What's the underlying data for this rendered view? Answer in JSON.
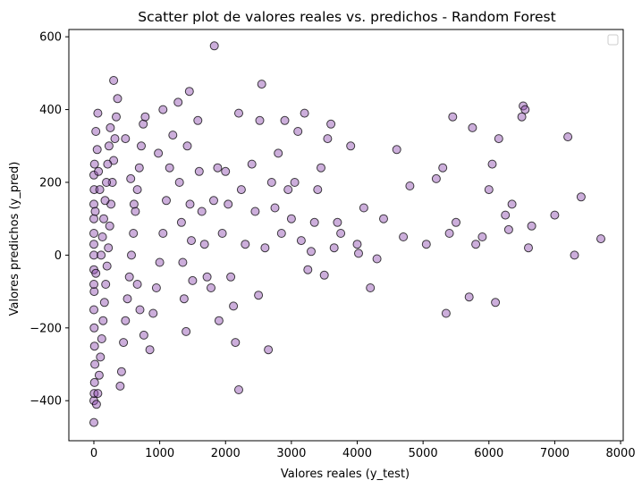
{
  "chart_data": {
    "type": "scatter",
    "title": "Scatter plot de valores reales vs. predichos - Random Forest",
    "xlabel": "Valores reales (y_test)",
    "ylabel": "Valores predichos (y_pred)",
    "xlim": [
      -380,
      8040
    ],
    "ylim": [
      -510,
      620
    ],
    "xticks": [
      0,
      1000,
      2000,
      3000,
      4000,
      5000,
      6000,
      7000,
      8000
    ],
    "yticks": [
      -400,
      -200,
      0,
      200,
      400,
      600
    ],
    "grid": false,
    "legend": {
      "placement": "top-right",
      "entries": []
    },
    "marker": {
      "fill": "#8e4bb0",
      "edge": "#000000",
      "alpha": 0.45
    },
    "series": [
      {
        "points": [
          [
            0,
            -460
          ],
          [
            0,
            -400
          ],
          [
            5,
            -380
          ],
          [
            10,
            -350
          ],
          [
            15,
            -300
          ],
          [
            10,
            -250
          ],
          [
            5,
            -200
          ],
          [
            0,
            -150
          ],
          [
            5,
            -100
          ],
          [
            0,
            -80
          ],
          [
            0,
            -40
          ],
          [
            0,
            0
          ],
          [
            0,
            30
          ],
          [
            0,
            60
          ],
          [
            0,
            100
          ],
          [
            0,
            140
          ],
          [
            5,
            180
          ],
          [
            0,
            220
          ],
          [
            10,
            250
          ],
          [
            20,
            120
          ],
          [
            30,
            -50
          ],
          [
            40,
            -410
          ],
          [
            60,
            -380
          ],
          [
            80,
            -330
          ],
          [
            100,
            -280
          ],
          [
            120,
            -230
          ],
          [
            140,
            -180
          ],
          [
            160,
            -130
          ],
          [
            180,
            -80
          ],
          [
            200,
            -30
          ],
          [
            220,
            20
          ],
          [
            240,
            80
          ],
          [
            260,
            140
          ],
          [
            280,
            200
          ],
          [
            300,
            260
          ],
          [
            320,
            320
          ],
          [
            340,
            380
          ],
          [
            360,
            430
          ],
          [
            300,
            480
          ],
          [
            250,
            350
          ],
          [
            230,
            300
          ],
          [
            210,
            250
          ],
          [
            190,
            200
          ],
          [
            170,
            150
          ],
          [
            150,
            100
          ],
          [
            130,
            50
          ],
          [
            110,
            0
          ],
          [
            90,
            180
          ],
          [
            70,
            230
          ],
          [
            50,
            290
          ],
          [
            30,
            340
          ],
          [
            60,
            390
          ],
          [
            400,
            -360
          ],
          [
            420,
            -320
          ],
          [
            450,
            -240
          ],
          [
            480,
            -180
          ],
          [
            510,
            -120
          ],
          [
            540,
            -60
          ],
          [
            570,
            0
          ],
          [
            600,
            60
          ],
          [
            630,
            120
          ],
          [
            660,
            180
          ],
          [
            690,
            240
          ],
          [
            720,
            300
          ],
          [
            750,
            360
          ],
          [
            780,
            380
          ],
          [
            480,
            320
          ],
          [
            560,
            210
          ],
          [
            610,
            140
          ],
          [
            660,
            -80
          ],
          [
            700,
            -150
          ],
          [
            760,
            -220
          ],
          [
            850,
            -260
          ],
          [
            900,
            -160
          ],
          [
            950,
            -90
          ],
          [
            1000,
            -20
          ],
          [
            1050,
            60
          ],
          [
            1100,
            150
          ],
          [
            1150,
            240
          ],
          [
            1200,
            330
          ],
          [
            980,
            280
          ],
          [
            1050,
            400
          ],
          [
            1280,
            420
          ],
          [
            1300,
            200
          ],
          [
            1330,
            90
          ],
          [
            1350,
            -20
          ],
          [
            1370,
            -120
          ],
          [
            1400,
            -210
          ],
          [
            1420,
            300
          ],
          [
            1450,
            450
          ],
          [
            1460,
            140
          ],
          [
            1480,
            40
          ],
          [
            1500,
            -70
          ],
          [
            1580,
            370
          ],
          [
            1600,
            230
          ],
          [
            1640,
            120
          ],
          [
            1680,
            30
          ],
          [
            1720,
            -60
          ],
          [
            1780,
            -90
          ],
          [
            1820,
            150
          ],
          [
            1830,
            575
          ],
          [
            1880,
            240
          ],
          [
            1900,
            -180
          ],
          [
            1950,
            60
          ],
          [
            2000,
            230
          ],
          [
            2040,
            140
          ],
          [
            2080,
            -60
          ],
          [
            2120,
            -140
          ],
          [
            2150,
            -240
          ],
          [
            2200,
            -370
          ],
          [
            2200,
            390
          ],
          [
            2240,
            180
          ],
          [
            2300,
            30
          ],
          [
            2400,
            250
          ],
          [
            2450,
            120
          ],
          [
            2500,
            -110
          ],
          [
            2520,
            370
          ],
          [
            2550,
            470
          ],
          [
            2600,
            20
          ],
          [
            2650,
            -260
          ],
          [
            2700,
            200
          ],
          [
            2750,
            130
          ],
          [
            2800,
            280
          ],
          [
            2850,
            60
          ],
          [
            2900,
            370
          ],
          [
            2950,
            180
          ],
          [
            3000,
            100
          ],
          [
            3050,
            200
          ],
          [
            3100,
            340
          ],
          [
            3150,
            40
          ],
          [
            3200,
            390
          ],
          [
            3250,
            -40
          ],
          [
            3300,
            10
          ],
          [
            3350,
            90
          ],
          [
            3400,
            180
          ],
          [
            3450,
            240
          ],
          [
            3500,
            -55
          ],
          [
            3550,
            320
          ],
          [
            3600,
            360
          ],
          [
            3650,
            20
          ],
          [
            3700,
            90
          ],
          [
            3750,
            60
          ],
          [
            3900,
            300
          ],
          [
            4000,
            30
          ],
          [
            4020,
            5
          ],
          [
            4100,
            130
          ],
          [
            4200,
            -90
          ],
          [
            4300,
            -10
          ],
          [
            4400,
            100
          ],
          [
            4600,
            290
          ],
          [
            4700,
            50
          ],
          [
            4800,
            190
          ],
          [
            5050,
            30
          ],
          [
            5200,
            210
          ],
          [
            5300,
            240
          ],
          [
            5350,
            -160
          ],
          [
            5400,
            60
          ],
          [
            5450,
            380
          ],
          [
            5500,
            90
          ],
          [
            5700,
            -115
          ],
          [
            5750,
            350
          ],
          [
            5800,
            30
          ],
          [
            5900,
            50
          ],
          [
            6000,
            180
          ],
          [
            6050,
            250
          ],
          [
            6100,
            -130
          ],
          [
            6150,
            320
          ],
          [
            6250,
            110
          ],
          [
            6300,
            70
          ],
          [
            6350,
            140
          ],
          [
            6500,
            380
          ],
          [
            6520,
            410
          ],
          [
            6550,
            400
          ],
          [
            6600,
            20
          ],
          [
            6650,
            80
          ],
          [
            7000,
            110
          ],
          [
            7200,
            325
          ],
          [
            7300,
            0
          ],
          [
            7400,
            160
          ],
          [
            7700,
            45
          ]
        ]
      }
    ]
  }
}
